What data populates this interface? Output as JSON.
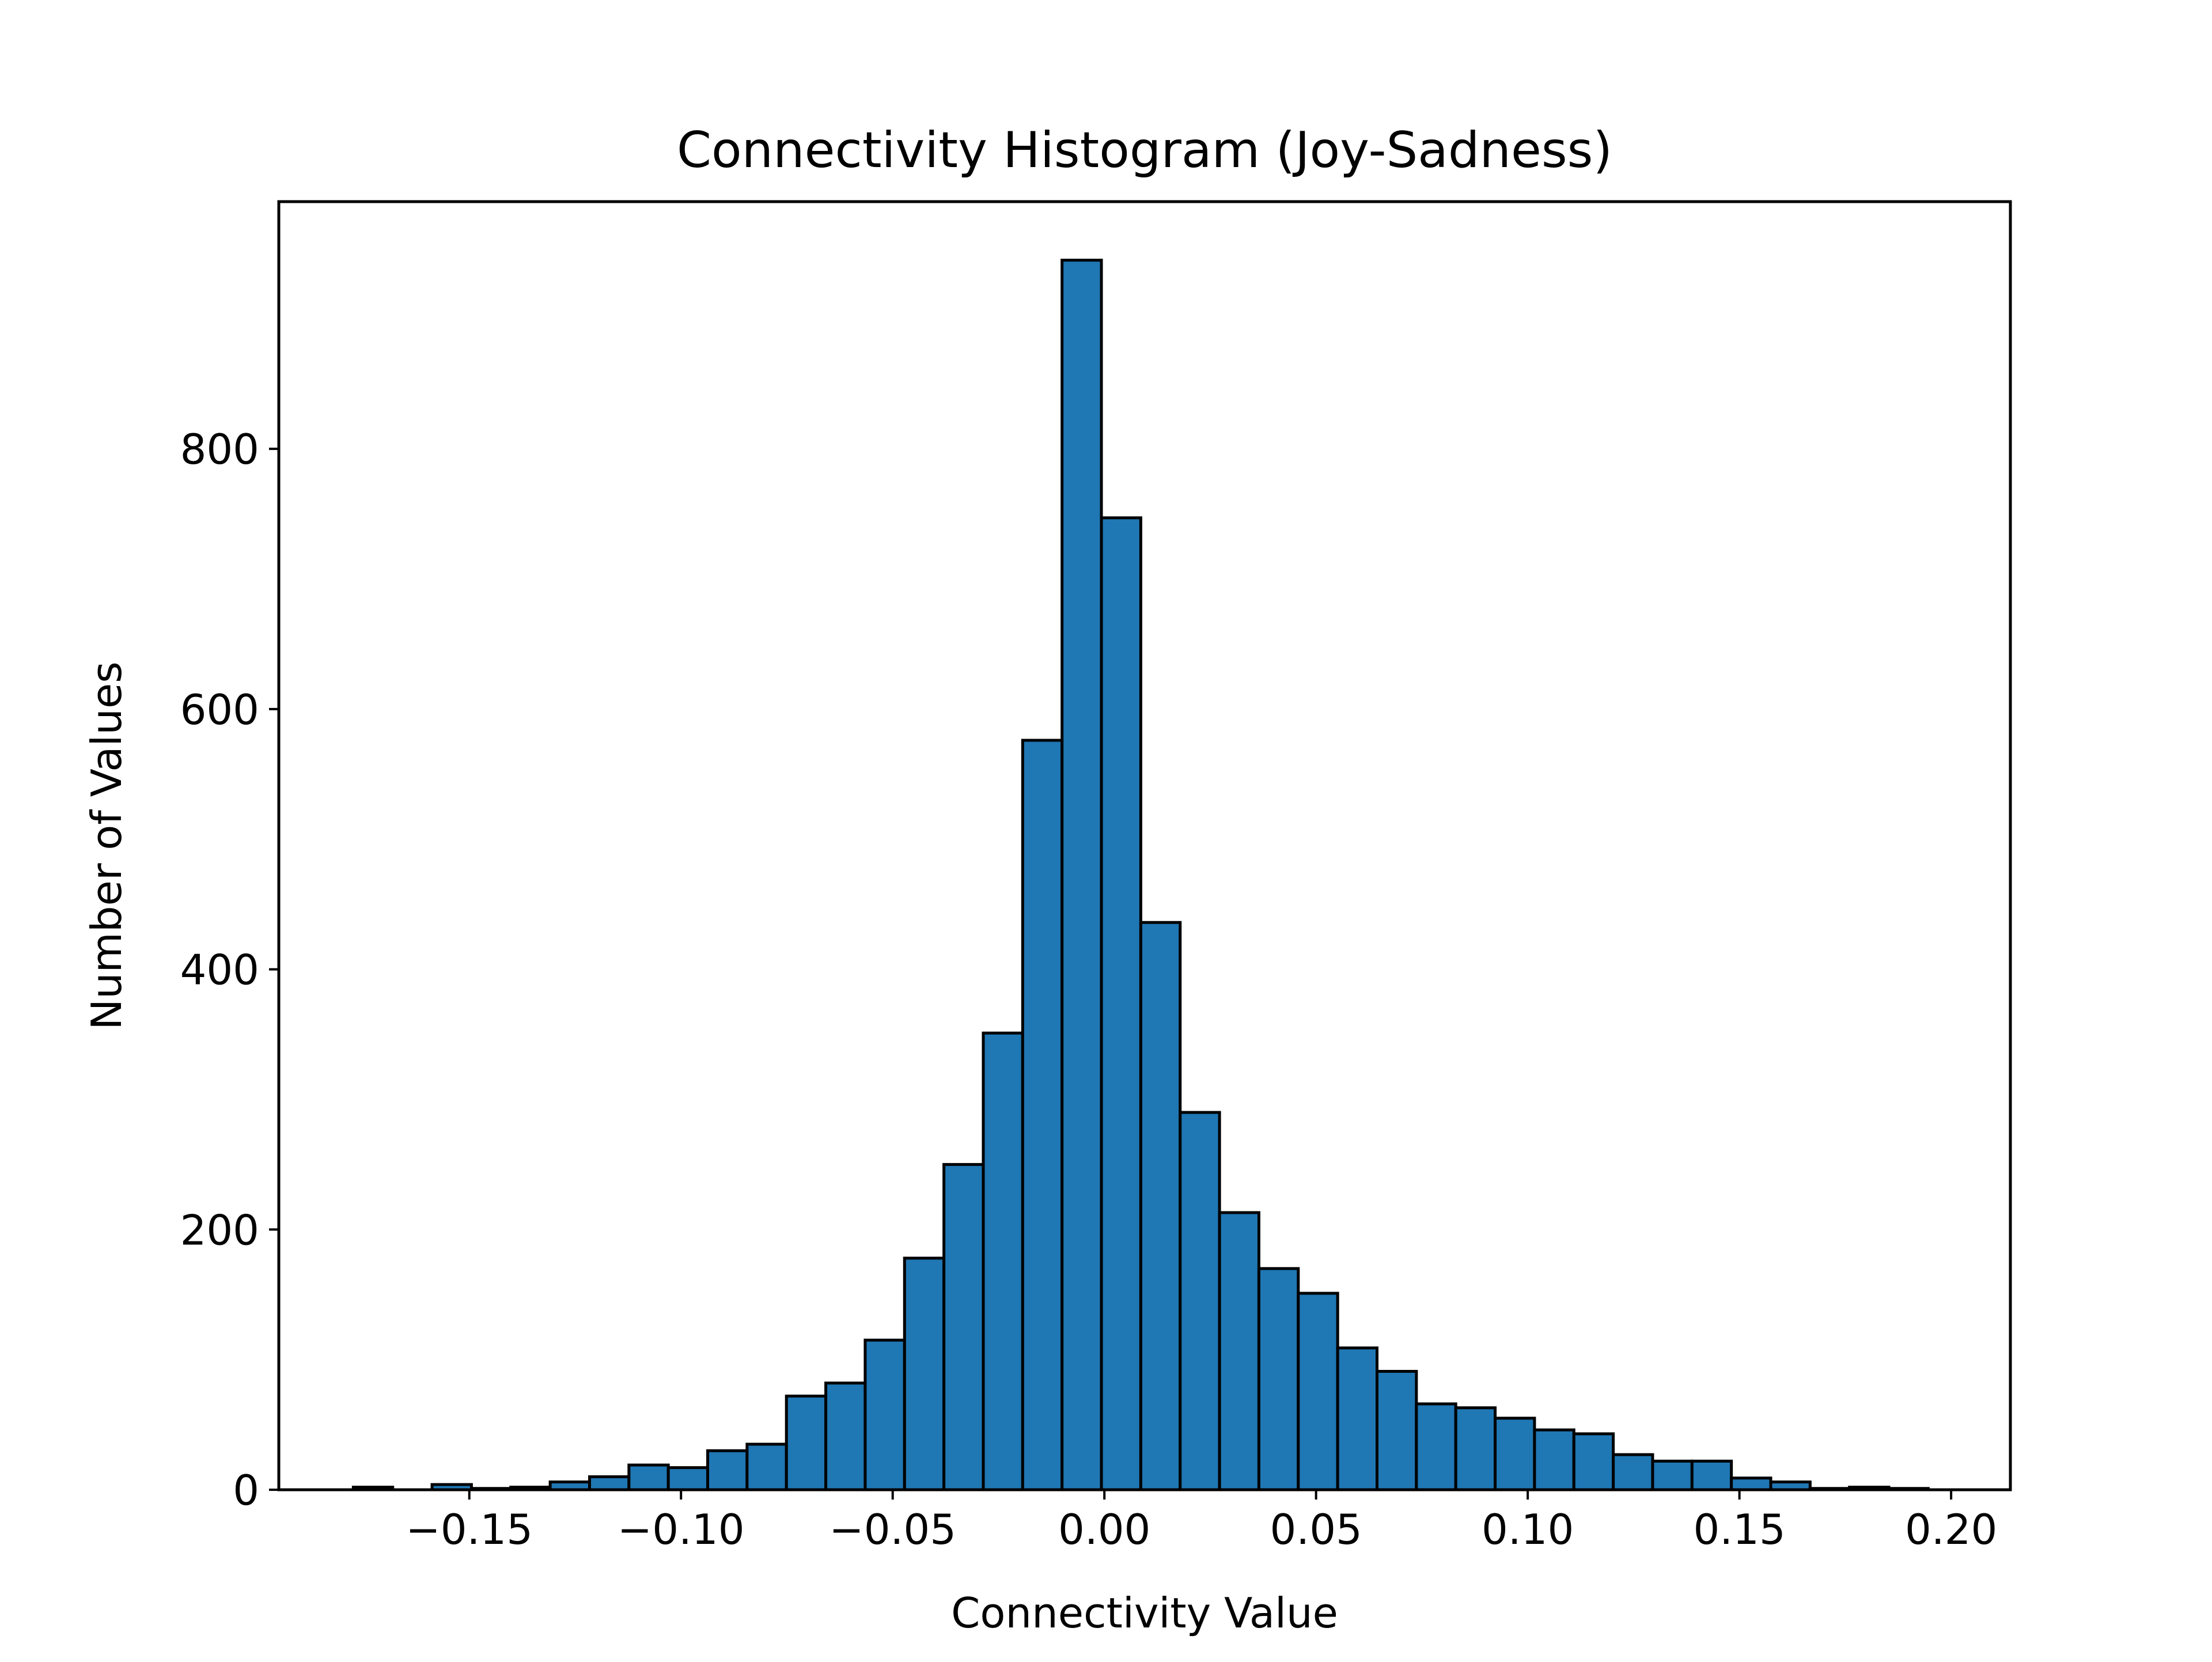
{
  "chart_data": {
    "type": "bar",
    "title": "Connectivity Histogram (Joy-Sadness)",
    "xlabel": "Connectivity Value",
    "ylabel": "Number of Values",
    "xlim": [
      -0.195,
      0.214
    ],
    "ylim": [
      0,
      990
    ],
    "grid": false,
    "legend": "none",
    "bar_color": "#1f77b4",
    "edge_color": "#000000",
    "xticks": [
      -0.15,
      -0.1,
      -0.05,
      0.0,
      0.05,
      0.1,
      0.15,
      0.2
    ],
    "xtick_labels": [
      "−0.15",
      "−0.10",
      "−0.05",
      "0.00",
      "0.05",
      "0.10",
      "0.15",
      "0.20"
    ],
    "yticks": [
      0,
      200,
      400,
      600,
      800
    ],
    "ytick_labels": [
      "0",
      "200",
      "400",
      "600",
      "800"
    ],
    "bins": [
      {
        "x0": -0.1774,
        "x1": -0.1681,
        "count": 2
      },
      {
        "x0": -0.1681,
        "x1": -0.1588,
        "count": 0
      },
      {
        "x0": -0.1588,
        "x1": -0.1495,
        "count": 4
      },
      {
        "x0": -0.1495,
        "x1": -0.1402,
        "count": 1
      },
      {
        "x0": -0.1402,
        "x1": -0.1309,
        "count": 2
      },
      {
        "x0": -0.1309,
        "x1": -0.1216,
        "count": 6
      },
      {
        "x0": -0.1216,
        "x1": -0.1123,
        "count": 10
      },
      {
        "x0": -0.1123,
        "x1": -0.103,
        "count": 19
      },
      {
        "x0": -0.103,
        "x1": -0.0937,
        "count": 17
      },
      {
        "x0": -0.0937,
        "x1": -0.0844,
        "count": 30
      },
      {
        "x0": -0.0844,
        "x1": -0.0751,
        "count": 35
      },
      {
        "x0": -0.0751,
        "x1": -0.0658,
        "count": 72
      },
      {
        "x0": -0.0658,
        "x1": -0.0565,
        "count": 82
      },
      {
        "x0": -0.0565,
        "x1": -0.0472,
        "count": 115
      },
      {
        "x0": -0.0472,
        "x1": -0.0379,
        "count": 178
      },
      {
        "x0": -0.0379,
        "x1": -0.0286,
        "count": 250
      },
      {
        "x0": -0.0286,
        "x1": -0.0193,
        "count": 351
      },
      {
        "x0": -0.0193,
        "x1": -0.01,
        "count": 576
      },
      {
        "x0": -0.01,
        "x1": -0.0007,
        "count": 945
      },
      {
        "x0": -0.0007,
        "x1": 0.0086,
        "count": 747
      },
      {
        "x0": 0.0086,
        "x1": 0.0179,
        "count": 436
      },
      {
        "x0": 0.0179,
        "x1": 0.0272,
        "count": 290
      },
      {
        "x0": 0.0272,
        "x1": 0.0365,
        "count": 213
      },
      {
        "x0": 0.0365,
        "x1": 0.0458,
        "count": 170
      },
      {
        "x0": 0.0458,
        "x1": 0.0551,
        "count": 151
      },
      {
        "x0": 0.0551,
        "x1": 0.0644,
        "count": 109
      },
      {
        "x0": 0.0644,
        "x1": 0.0737,
        "count": 91
      },
      {
        "x0": 0.0737,
        "x1": 0.083,
        "count": 66
      },
      {
        "x0": 0.083,
        "x1": 0.0923,
        "count": 63
      },
      {
        "x0": 0.0923,
        "x1": 0.1016,
        "count": 55
      },
      {
        "x0": 0.1016,
        "x1": 0.1109,
        "count": 46
      },
      {
        "x0": 0.1109,
        "x1": 0.1202,
        "count": 43
      },
      {
        "x0": 0.1202,
        "x1": 0.1295,
        "count": 27
      },
      {
        "x0": 0.1295,
        "x1": 0.1388,
        "count": 22
      },
      {
        "x0": 0.1388,
        "x1": 0.1481,
        "count": 22
      },
      {
        "x0": 0.1481,
        "x1": 0.1574,
        "count": 9
      },
      {
        "x0": 0.1574,
        "x1": 0.1667,
        "count": 6
      },
      {
        "x0": 0.1667,
        "x1": 0.176,
        "count": 1
      },
      {
        "x0": 0.176,
        "x1": 0.1853,
        "count": 2
      },
      {
        "x0": 0.1853,
        "x1": 0.1946,
        "count": 1
      }
    ]
  }
}
